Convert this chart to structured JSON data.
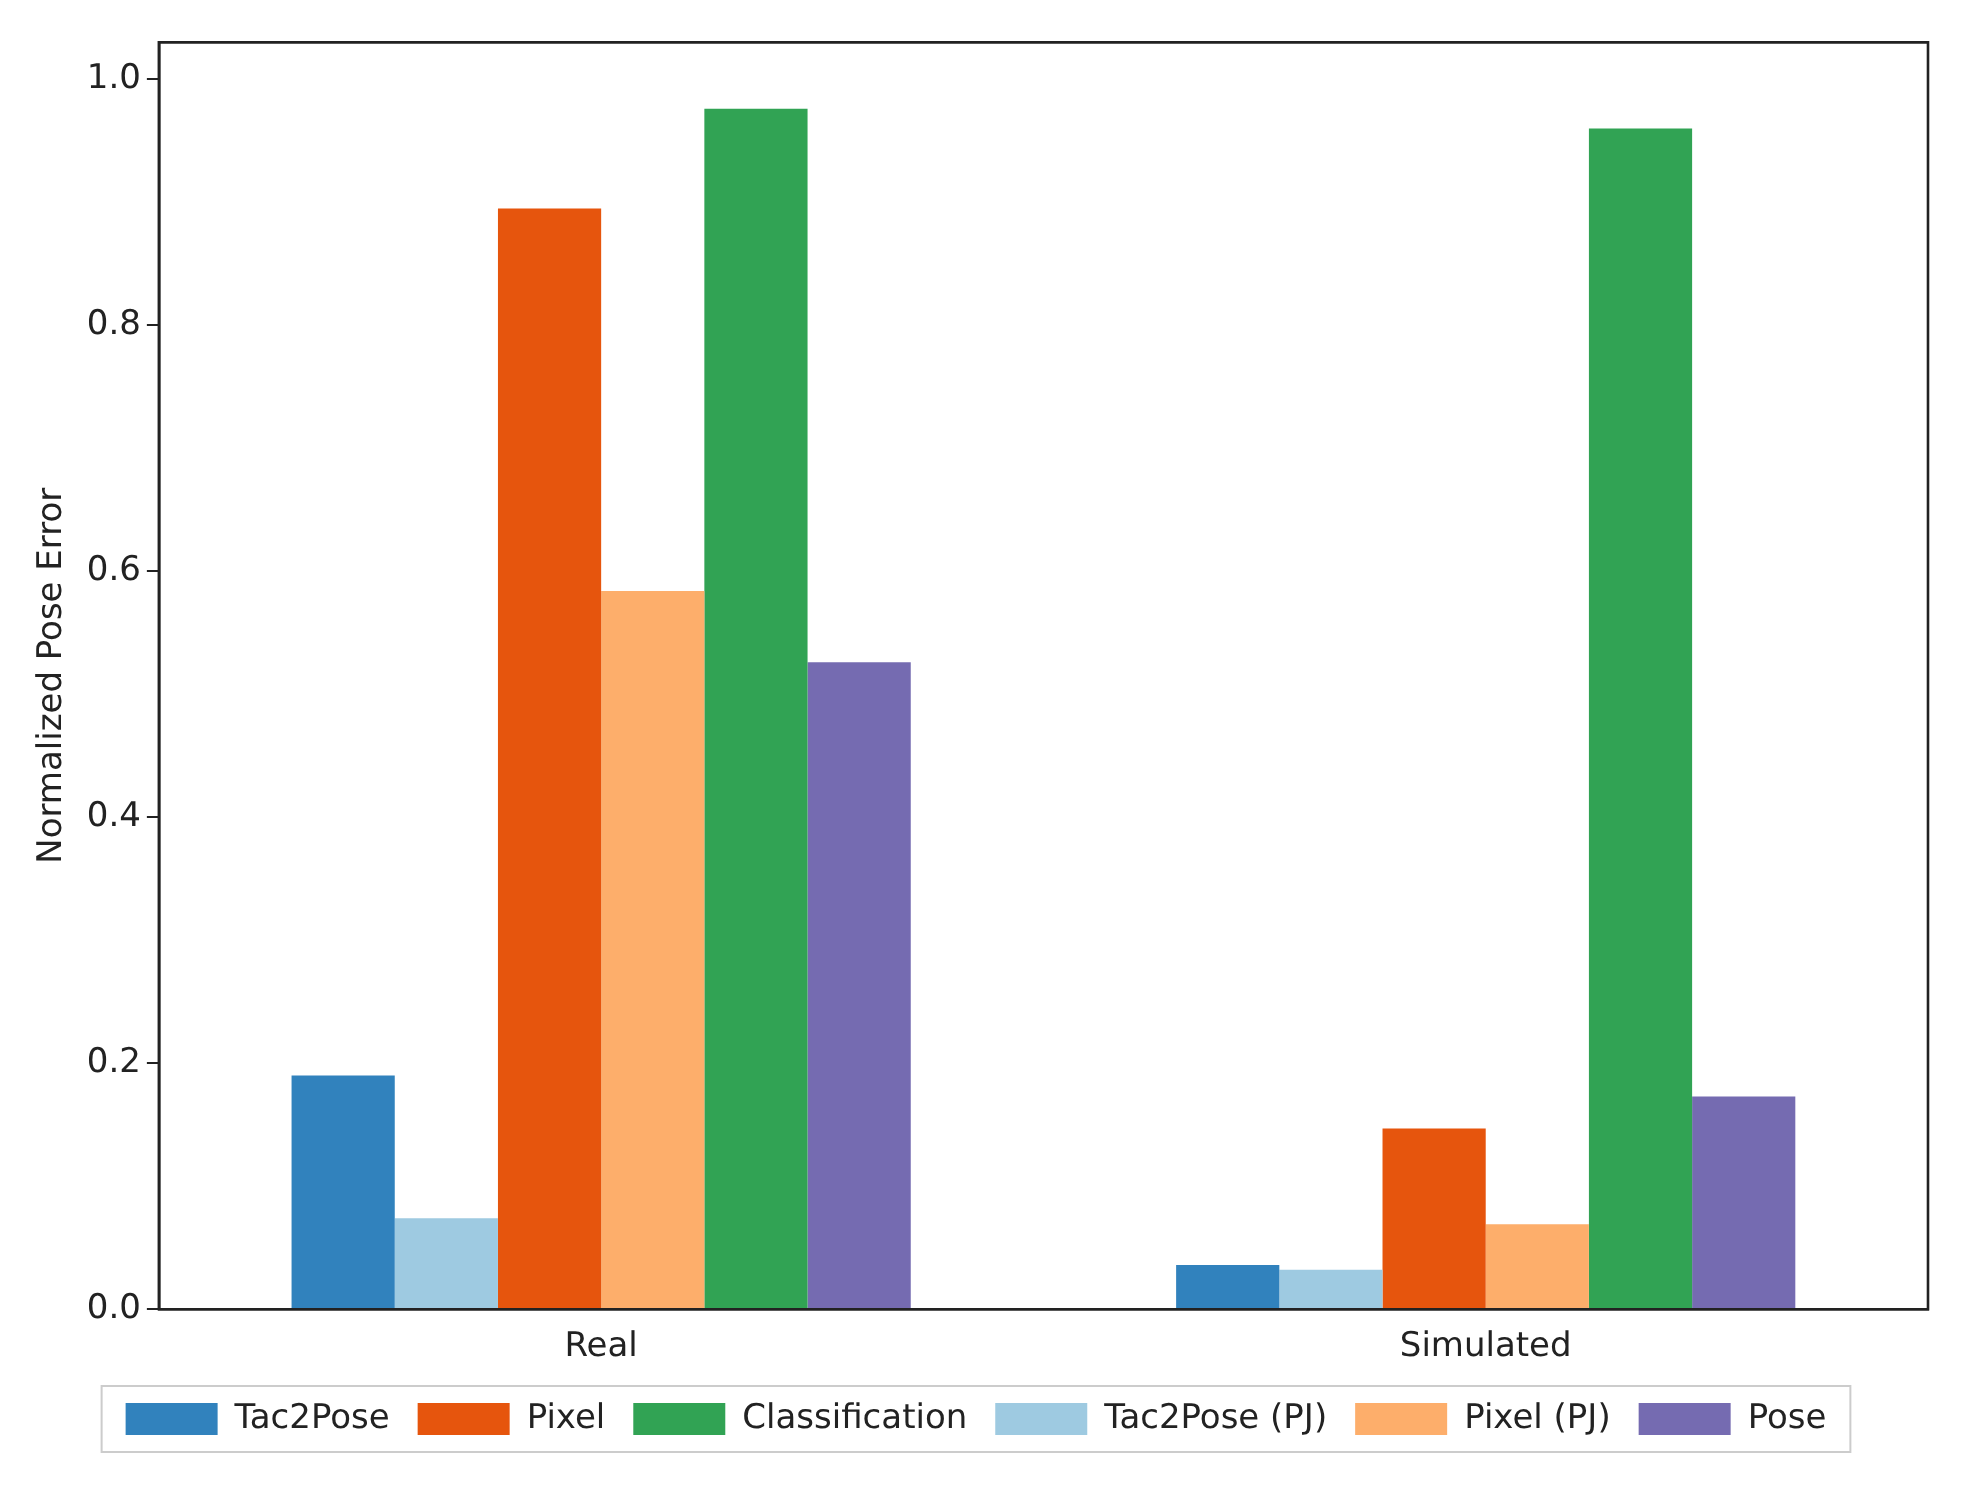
{
  "chart_data": {
    "type": "bar",
    "ylabel": "Normalized Pose Error",
    "categories": [
      "Real",
      "Simulated"
    ],
    "series": [
      {
        "name": "Tac2Pose",
        "color": "#3182bd",
        "values": [
          0.19,
          0.036
        ]
      },
      {
        "name": "Tac2Pose (PJ)",
        "color": "#9ecae1",
        "values": [
          0.074,
          0.032
        ]
      },
      {
        "name": "Pixel",
        "color": "#e6550d",
        "values": [
          0.895,
          0.147
        ]
      },
      {
        "name": "Pixel (PJ)",
        "color": "#fdae6b",
        "values": [
          0.584,
          0.069
        ]
      },
      {
        "name": "Classification",
        "color": "#31a354",
        "values": [
          0.976,
          0.96
        ]
      },
      {
        "name": "Pose",
        "color": "#756bb1",
        "values": [
          0.526,
          0.173
        ]
      }
    ],
    "ylim": [
      0,
      1.03
    ],
    "yticks": [
      {
        "value": 0,
        "label": "0.0"
      },
      {
        "value": 0.2,
        "label": "0.2"
      },
      {
        "value": 0.4,
        "label": "0.4"
      },
      {
        "value": 0.6,
        "label": "0.6"
      },
      {
        "value": 0.8,
        "label": "0.8"
      },
      {
        "value": 1,
        "label": "1.0"
      }
    ],
    "grid": false,
    "legend": "bottom"
  }
}
